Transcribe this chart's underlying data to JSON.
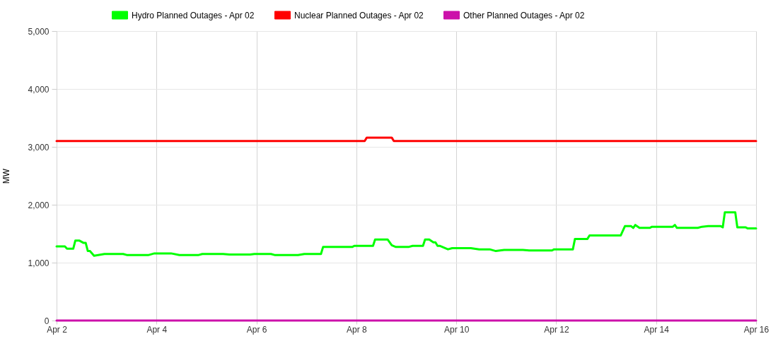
{
  "chart_data": {
    "type": "line",
    "ylabel": "MW",
    "grid": true,
    "legend": "top",
    "xlim": [
      "--04-02",
      "--04-16"
    ],
    "xticks": [
      {
        "value": "--04-02",
        "label": "Apr 2"
      },
      {
        "value": "--04-04",
        "label": "Apr 4"
      },
      {
        "value": "--04-06",
        "label": "Apr 6"
      },
      {
        "value": "--04-08",
        "label": "Apr 8"
      },
      {
        "value": "--04-10",
        "label": "Apr 10"
      },
      {
        "value": "--04-12",
        "label": "Apr 12"
      },
      {
        "value": "--04-14",
        "label": "Apr 14"
      },
      {
        "value": "--04-16",
        "label": "Apr 16"
      }
    ],
    "ylim": [
      0,
      5000
    ],
    "yticks": [
      0,
      {
        "value": 1000,
        "label": "1,000"
      },
      {
        "value": 2000,
        "label": "2,000"
      },
      {
        "value": 3000,
        "label": "3,000"
      },
      {
        "value": 4000,
        "label": "4,000"
      },
      {
        "value": 5000,
        "label": "5,000"
      }
    ],
    "series": [
      {
        "name": "Hydro Planned Outages - Apr 02",
        "color": "#00ff00",
        "x": [
          "--04-02T00:00",
          "--04-02T04:00",
          "--04-02T05:00",
          "--04-02T08:00",
          "--04-02T09:00",
          "--04-02T11:00",
          "--04-02T13:00",
          "--04-02T14:00",
          "--04-02T15:00",
          "--04-02T16:00",
          "--04-02T18:00",
          "--04-02T23:00",
          "--04-03T08:00",
          "--04-03T10:00",
          "--04-03T20:00",
          "--04-03T23:00",
          "--04-04T07:00",
          "--04-04T11:00",
          "--04-04T20:00",
          "--04-04T22:00",
          "--04-05T08:00",
          "--04-05T11:00",
          "--04-05T21:00",
          "--04-05T23:00",
          "--04-06T07:00",
          "--04-06T09:00",
          "--04-06T20:00",
          "--04-06T23:00",
          "--04-07T07:00",
          "--04-07T08:00",
          "--04-07T22:00",
          "--04-07T23:00",
          "--04-08T08:00",
          "--04-08T09:00",
          "--04-08T15:00",
          "--04-08T17:00",
          "--04-08T19:00",
          "--04-09T01:00",
          "--04-09T03:00",
          "--04-09T08:00",
          "--04-09T09:00",
          "--04-09T11:00",
          "--04-09T13:00",
          "--04-09T14:00",
          "--04-09T15:00",
          "--04-09T16:00",
          "--04-09T20:00",
          "--04-09T22:00",
          "--04-10T07:00",
          "--04-10T11:00",
          "--04-10T16:00",
          "--04-10T19:00",
          "--04-10T23:00",
          "--04-11T08:00",
          "--04-11T11:00",
          "--04-11T22:00",
          "--04-11T23:00",
          "--04-12T08:00",
          "--04-12T09:00",
          "--04-12T15:00",
          "--04-12T16:00",
          "--04-13T07:00",
          "--04-13T09:00",
          "--04-13T12:00",
          "--04-13T13:00",
          "--04-13T14:00",
          "--04-13T16:00",
          "--04-13T21:00",
          "--04-13T22:00",
          "--04-14T08:00",
          "--04-14T09:00",
          "--04-14T10:00",
          "--04-14T20:00",
          "--04-14T22:00",
          "--04-15T01:00",
          "--04-15T07:00",
          "--04-15T08:00",
          "--04-15T09:00",
          "--04-15T14:00",
          "--04-15T15:00",
          "--04-15T19:00",
          "--04-15T20:00",
          "--04-16T00:00"
        ],
        "values": [
          1280,
          1280,
          1240,
          1240,
          1380,
          1380,
          1340,
          1340,
          1200,
          1200,
          1120,
          1150,
          1150,
          1130,
          1130,
          1160,
          1160,
          1130,
          1130,
          1150,
          1150,
          1140,
          1140,
          1150,
          1150,
          1130,
          1130,
          1150,
          1150,
          1270,
          1270,
          1290,
          1290,
          1400,
          1400,
          1300,
          1270,
          1270,
          1290,
          1290,
          1400,
          1400,
          1350,
          1350,
          1290,
          1290,
          1230,
          1250,
          1250,
          1230,
          1230,
          1200,
          1220,
          1220,
          1210,
          1210,
          1230,
          1230,
          1410,
          1410,
          1470,
          1470,
          1630,
          1630,
          1600,
          1650,
          1600,
          1600,
          1620,
          1620,
          1650,
          1600,
          1600,
          1620,
          1630,
          1630,
          1610,
          1870,
          1870,
          1610,
          1610,
          1590,
          1590
        ]
      },
      {
        "name": "Nuclear Planned Outages - Apr 02",
        "color": "#ff0000",
        "x": [
          "--04-02T00:00",
          "--04-08T04:00",
          "--04-08T05:00",
          "--04-08T17:00",
          "--04-08T18:00",
          "--04-16T00:00"
        ],
        "values": [
          3100,
          3100,
          3160,
          3160,
          3100,
          3100
        ]
      },
      {
        "name": "Other Planned Outages - Apr 02",
        "color": "#cc11aa",
        "x": [
          "--04-02T00:00",
          "--04-16T00:00"
        ],
        "values": [
          0,
          0
        ]
      }
    ]
  }
}
